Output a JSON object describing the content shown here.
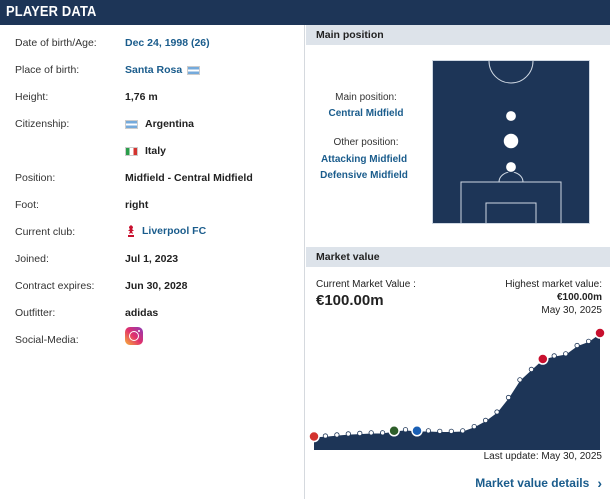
{
  "header": {
    "title": "PLAYER DATA"
  },
  "player": {
    "rows": [
      {
        "label": "Date of birth/Age:",
        "value": "Dec 24, 1998 (26)"
      },
      {
        "label": "Place of birth:",
        "value": "Santa Rosa"
      },
      {
        "label": "Height:",
        "value": "1,76 m"
      },
      {
        "label": "Citizenship:",
        "value": "Argentina"
      },
      {
        "label": "",
        "value": "Italy"
      },
      {
        "label": "Position:",
        "value": "Midfield - Central Midfield"
      },
      {
        "label": "Foot:",
        "value": "right"
      },
      {
        "label": "Current club:",
        "value": "Liverpool FC"
      },
      {
        "label": "Joined:",
        "value": "Jul 1, 2023"
      },
      {
        "label": "Contract expires:",
        "value": "Jun 30, 2028"
      },
      {
        "label": "Outfitter:",
        "value": "adidas"
      },
      {
        "label": "Social-Media:",
        "value": ""
      }
    ],
    "icons": {
      "place_flag": "argentina-flag-icon",
      "citizenship_flag_1": "argentina-flag-icon",
      "citizenship_flag_2": "italy-flag-icon",
      "club_icon": "liverpool-crest-icon",
      "social": "instagram-icon"
    }
  },
  "position": {
    "section_title": "Main position",
    "main_label": "Main position:",
    "main_value": "Central Midfield",
    "other_label": "Other position:",
    "other_values": [
      "Attacking Midfield",
      "Defensive Midfield"
    ]
  },
  "market": {
    "section_title": "Market value",
    "current_label": "Current Market Value :",
    "current_value": "€100.00m",
    "highest_label": "Highest market value:",
    "highest_value": "€100.00m",
    "highest_date": "May 30, 2025",
    "last_update": "Last update: May 30, 2025",
    "details_link": "Market value details"
  },
  "colors": {
    "brand_navy": "#1d3557",
    "link_blue": "#1a5c8c",
    "section_grey": "#dde3ea"
  },
  "chart_data": {
    "type": "area",
    "title": "",
    "xlabel": "",
    "ylabel": "",
    "series": [
      {
        "values": [
          0.5,
          1,
          2,
          3,
          3.5,
          4,
          4,
          6,
          7,
          6,
          6,
          5.5,
          5.5,
          6,
          10,
          16,
          24,
          38,
          55,
          65,
          75,
          78,
          80,
          88,
          92,
          100
        ]
      }
    ],
    "ylim": [
      0,
      100
    ],
    "grid": false,
    "legend": "none"
  }
}
